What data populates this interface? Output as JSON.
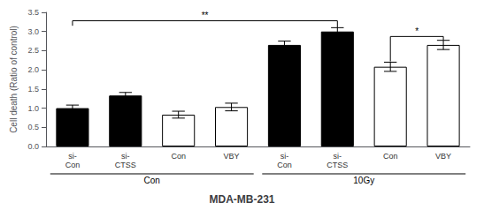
{
  "chart_data": {
    "type": "bar",
    "title": "MDA-MB-231",
    "ylabel": "Cell death (Ratio of control)",
    "categories": [
      "si-\nCon",
      "si-\nCTSS",
      "Con",
      "VBY",
      "si-\nCon",
      "si-\nCTSS",
      "Con",
      "VBY"
    ],
    "values": [
      1.0,
      1.33,
      0.83,
      1.03,
      2.65,
      3.0,
      2.08,
      2.65
    ],
    "errors": [
      0.08,
      0.08,
      0.09,
      0.1,
      0.1,
      0.1,
      0.12,
      0.12
    ],
    "colors": [
      "#000000",
      "#000000",
      "#ffffff",
      "#ffffff",
      "#000000",
      "#000000",
      "#ffffff",
      "#ffffff"
    ],
    "groups": [
      {
        "label": "Con",
        "size": 4
      },
      {
        "label": "10Gy",
        "size": 4
      }
    ],
    "significance": [
      {
        "label": "**",
        "from": 0,
        "to": 5,
        "y": 3.28,
        "y_from": 3.15,
        "y_to": 3.1
      },
      {
        "label": "*",
        "from": 6,
        "to": 7,
        "y": 2.87,
        "y_from": 2.22,
        "y_to": 2.78
      }
    ],
    "ylim": [
      0,
      3.5
    ],
    "yticks": [
      {
        "value": 0,
        "label": "0.0"
      },
      0.5,
      {
        "value": 1,
        "label": "1.0"
      },
      1.5,
      {
        "value": 2,
        "label": "2.0"
      },
      2.5,
      {
        "value": 3,
        "label": "3.0"
      },
      3.5
    ],
    "grid": false
  }
}
